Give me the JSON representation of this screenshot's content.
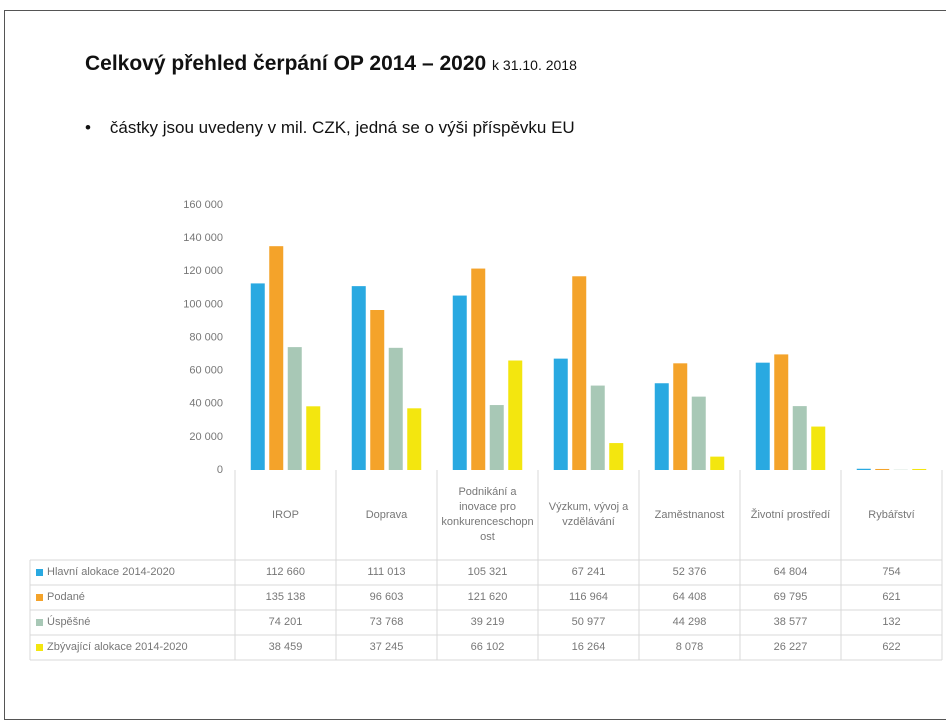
{
  "header": {
    "title": "Celkový přehled čerpání OP 2014 – 2020",
    "date": "k 31.10. 2018",
    "bullet": "částky jsou uvedeny v mil. CZK, jedná se o výši příspěvku EU"
  },
  "chart_data": {
    "type": "bar",
    "categories": [
      "IROP",
      "Doprava",
      "Podnikání a inovace pro konkurenceschopnost",
      "Výzkum, vývoj a vzdělávání",
      "Zaměstnanost",
      "Životní prostředí",
      "Rybářství"
    ],
    "series": [
      {
        "name": "Hlavní alokace 2014-2020",
        "color": "#29a9e1",
        "values": [
          112660,
          111013,
          105321,
          67241,
          52376,
          64804,
          754
        ],
        "value_labels": [
          "112 660",
          "111 013",
          "105 321",
          "67 241",
          "52 376",
          "64 804",
          "754"
        ]
      },
      {
        "name": "Podané",
        "color": "#f4a32a",
        "values": [
          135138,
          96603,
          121620,
          116964,
          64408,
          69795,
          621
        ],
        "value_labels": [
          "135 138",
          "96 603",
          "121 620",
          "116 964",
          "64 408",
          "69 795",
          "621"
        ]
      },
      {
        "name": "Úspěšné",
        "color": "#a8c8b6",
        "values": [
          74201,
          73768,
          39219,
          50977,
          44298,
          38577,
          132
        ],
        "value_labels": [
          "74 201",
          "73 768",
          "39 219",
          "50 977",
          "44 298",
          "38 577",
          "132"
        ]
      },
      {
        "name": "Zbývající alokace 2014-2020",
        "color": "#f3e60f",
        "values": [
          38459,
          37245,
          66102,
          16264,
          8078,
          26227,
          622
        ],
        "value_labels": [
          "38 459",
          "37 245",
          "66 102",
          "16 264",
          "8 078",
          "26 227",
          "622"
        ]
      }
    ],
    "ylim": [
      0,
      160000
    ],
    "yticks": [
      0,
      {
        "value": 20000,
        "label": "20 000"
      },
      {
        "value": 40000,
        "label": "40 000"
      },
      {
        "value": 60000,
        "label": "60 000"
      },
      {
        "value": 80000,
        "label": "80 000"
      },
      {
        "value": 100000,
        "label": "100 000"
      },
      {
        "value": 120000,
        "label": "120 000"
      },
      {
        "value": 140000,
        "label": "140 000"
      },
      {
        "value": 160000,
        "label": "160 000"
      }
    ]
  }
}
